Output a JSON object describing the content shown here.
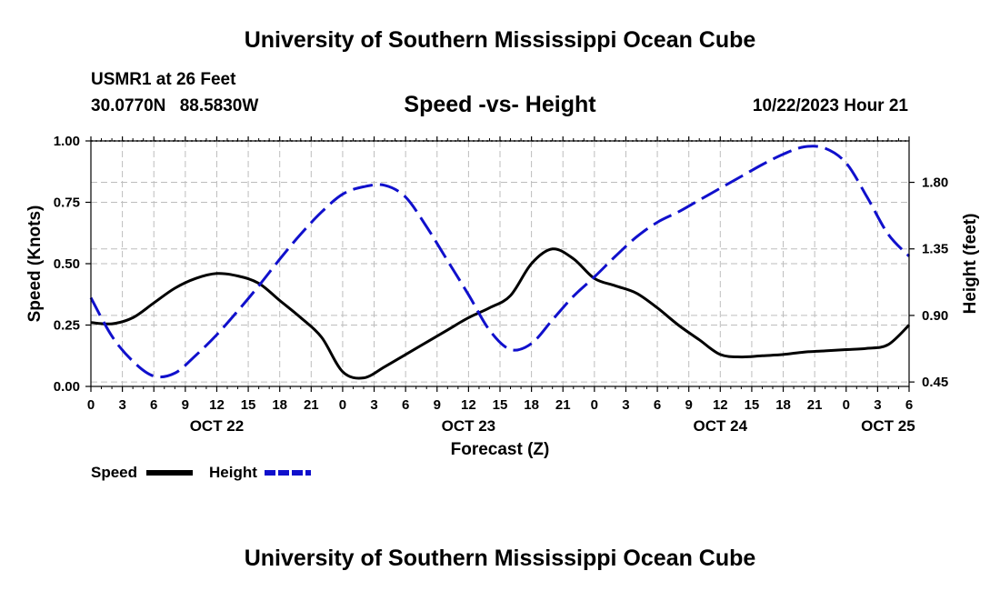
{
  "header": {
    "title": "University of Southern Mississippi Ocean Cube",
    "station": "USMR1 at 26 Feet",
    "lat": "30.0770N",
    "lon": "88.5830W",
    "datetime": "10/22/2023 Hour 21"
  },
  "footer": {
    "title": "University of Southern Mississippi Ocean Cube"
  },
  "chart_data": {
    "type": "line",
    "title": "Speed -vs- Height",
    "xlabel": "Forecast (Z)",
    "ylabel": "Speed (Knots)",
    "y2label": "Height (feet)",
    "xlim": [
      0,
      78
    ],
    "ylim": [
      0,
      1.0
    ],
    "y2lim": [
      0.42,
      2.08
    ],
    "grid": true,
    "x_tick_values": [
      0,
      3,
      6,
      9,
      12,
      15,
      18,
      21,
      24,
      27,
      30,
      33,
      36,
      39,
      42,
      45,
      48,
      51,
      54,
      57,
      60,
      63,
      66,
      69,
      72,
      75,
      78
    ],
    "x_tick_labels": [
      "0",
      "3",
      "6",
      "9",
      "12",
      "15",
      "18",
      "21",
      "0",
      "3",
      "6",
      "9",
      "12",
      "15",
      "18",
      "21",
      "0",
      "3",
      "6",
      "9",
      "12",
      "15",
      "18",
      "21",
      "0",
      "3",
      "6"
    ],
    "day_labels": [
      {
        "text": "OCT 22",
        "x": 12
      },
      {
        "text": "OCT 23",
        "x": 36
      },
      {
        "text": "OCT 24",
        "x": 60
      },
      {
        "text": "OCT 25",
        "x": 76
      }
    ],
    "y_ticks": [
      {
        "value": 0,
        "label": "0.00"
      },
      {
        "value": 0.25,
        "label": "0.25"
      },
      {
        "value": 0.5,
        "label": "0.50"
      },
      {
        "value": 0.75,
        "label": "0.75"
      },
      {
        "value": 1.0,
        "label": "1.00"
      }
    ],
    "y2_ticks": [
      {
        "value": 0.45,
        "label": "0.45"
      },
      {
        "value": 0.9,
        "label": "0.90"
      },
      {
        "value": 1.35,
        "label": "1.35"
      },
      {
        "value": 1.8,
        "label": "1.80"
      }
    ],
    "legend_position": "bottom-left",
    "series": [
      {
        "name": "Speed",
        "axis": "left",
        "color": "#000000",
        "dash": "solid",
        "x": [
          0,
          2,
          4,
          6,
          8,
          10,
          12,
          14,
          16,
          18,
          20,
          22,
          24,
          26,
          28,
          30,
          32,
          34,
          36,
          38,
          40,
          42,
          44,
          46,
          48,
          50,
          52,
          54,
          56,
          58,
          60,
          62,
          64,
          66,
          68,
          70,
          72,
          74,
          76,
          78
        ],
        "y": [
          0.26,
          0.255,
          0.28,
          0.34,
          0.4,
          0.44,
          0.46,
          0.45,
          0.42,
          0.35,
          0.28,
          0.2,
          0.06,
          0.035,
          0.08,
          0.13,
          0.18,
          0.23,
          0.28,
          0.32,
          0.37,
          0.5,
          0.56,
          0.52,
          0.44,
          0.41,
          0.38,
          0.32,
          0.25,
          0.19,
          0.13,
          0.12,
          0.125,
          0.13,
          0.14,
          0.145,
          0.15,
          0.155,
          0.17,
          0.25
        ]
      },
      {
        "name": "Height",
        "axis": "right",
        "color": "#1010cc",
        "dash": "dashed",
        "x": [
          0,
          2,
          4,
          6,
          8,
          10,
          12,
          14,
          16,
          18,
          20,
          22,
          24,
          26,
          28,
          30,
          32,
          34,
          36,
          38,
          40,
          42,
          44,
          46,
          48,
          50,
          52,
          54,
          56,
          58,
          60,
          62,
          64,
          66,
          68,
          70,
          72,
          74,
          76,
          78
        ],
        "y": [
          1.02,
          0.76,
          0.59,
          0.49,
          0.51,
          0.63,
          0.77,
          0.93,
          1.1,
          1.28,
          1.45,
          1.6,
          1.72,
          1.77,
          1.78,
          1.7,
          1.5,
          1.27,
          1.04,
          0.8,
          0.67,
          0.71,
          0.87,
          1.03,
          1.16,
          1.3,
          1.43,
          1.53,
          1.6,
          1.68,
          1.76,
          1.84,
          1.92,
          1.99,
          2.04,
          2.03,
          1.93,
          1.7,
          1.45,
          1.3
        ]
      }
    ]
  }
}
